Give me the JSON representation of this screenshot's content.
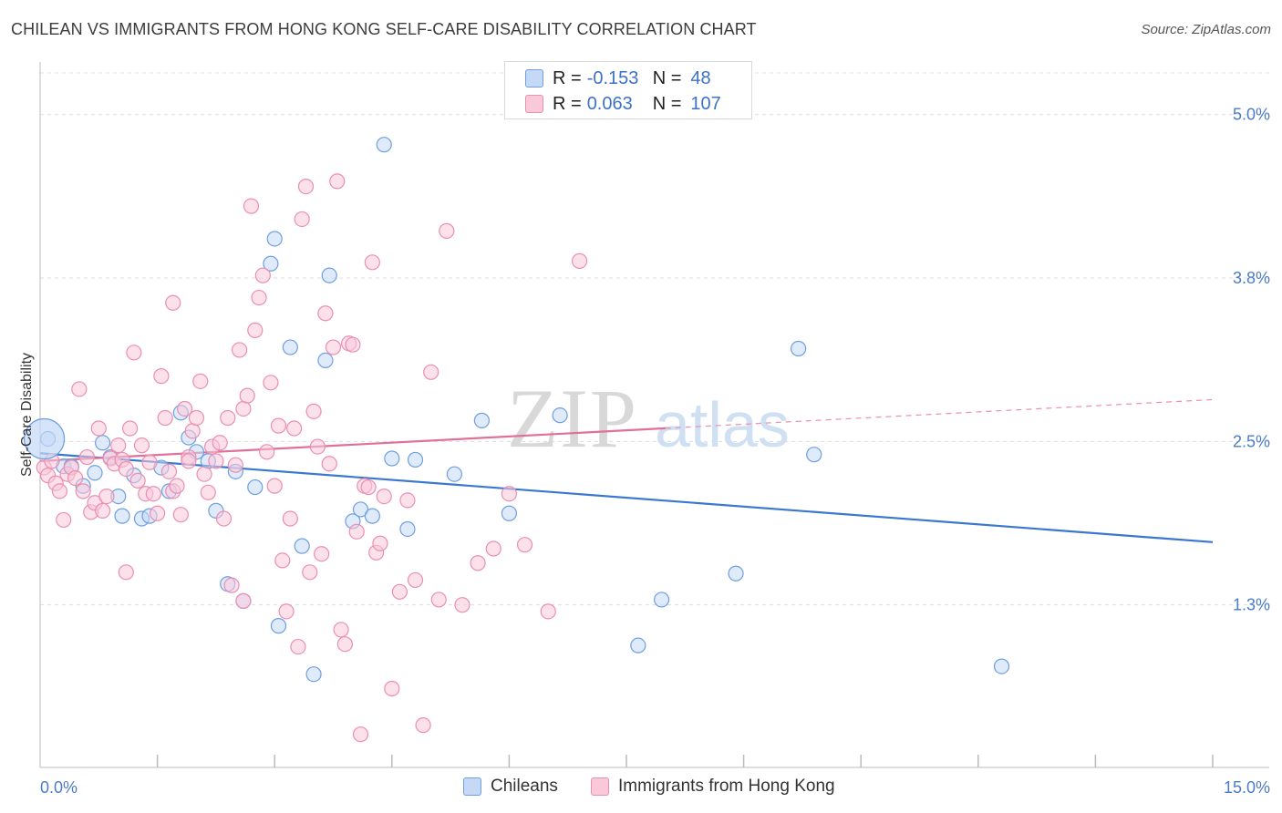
{
  "header": {
    "title": "CHILEAN VS IMMIGRANTS FROM HONG KONG SELF-CARE DISABILITY CORRELATION CHART",
    "source": "Source: ZipAtlas.com"
  },
  "watermark": {
    "zip": "ZIP",
    "atlas": "atlas"
  },
  "legend": {
    "rows": [
      {
        "r_label": "R =",
        "r_value": "-0.153",
        "n_label": "N =",
        "n_value": "48",
        "color": "#6f9fe0",
        "fill": "#c5d9f6"
      },
      {
        "r_label": "R =",
        "r_value": "0.063",
        "n_label": "N =",
        "n_value": "107",
        "color": "#ea8fb0",
        "fill": "#f9c9da"
      }
    ]
  },
  "bottom_legend": [
    {
      "label": "Chileans",
      "color": "#6f9fe0",
      "fill": "#c5d9f6"
    },
    {
      "label": "Immigrants from Hong Kong",
      "color": "#ea8fb0",
      "fill": "#f9c9da"
    }
  ],
  "chart_data": {
    "type": "scatter",
    "title": "CHILEAN VS IMMIGRANTS FROM HONG KONG SELF-CARE DISABILITY CORRELATION CHART",
    "xlabel": "",
    "ylabel": "Self-Care Disability",
    "xlim": [
      0,
      15
    ],
    "ylim": [
      0,
      5.2
    ],
    "x_tick_labels": [
      {
        "value": 0,
        "label": "0.0%"
      },
      {
        "value": 15,
        "label": "15.0%"
      }
    ],
    "y_tick_labels": [
      {
        "value": 1.25,
        "label": "1.3%"
      },
      {
        "value": 2.5,
        "label": "2.5%"
      },
      {
        "value": 3.75,
        "label": "3.8%"
      },
      {
        "value": 5.0,
        "label": "5.0%"
      }
    ],
    "y_gridlines": [
      1.25,
      2.5,
      3.75,
      5.0
    ],
    "x_minor_ticks": [
      1.5,
      3.0,
      4.5,
      6.0,
      7.5,
      9.0,
      10.5,
      12.0,
      13.5,
      15.0
    ],
    "series": [
      {
        "name": "Chileans",
        "color": "#6f9fe0",
        "fill": "#c5d9f6",
        "trend": {
          "x0": 0,
          "y0": 2.41,
          "x1": 15,
          "y1": 1.73,
          "dashed_from": null
        },
        "points": [
          [
            0.1,
            2.52
          ],
          [
            0.3,
            2.31
          ],
          [
            0.4,
            2.31
          ],
          [
            0.7,
            2.26
          ],
          [
            0.8,
            2.49
          ],
          [
            0.9,
            2.38
          ],
          [
            0.55,
            2.16
          ],
          [
            1.0,
            2.08
          ],
          [
            1.05,
            1.93
          ],
          [
            1.3,
            1.91
          ],
          [
            1.4,
            1.93
          ],
          [
            1.55,
            2.3
          ],
          [
            1.65,
            2.12
          ],
          [
            1.8,
            2.72
          ],
          [
            1.9,
            2.53
          ],
          [
            2.0,
            2.42
          ],
          [
            2.15,
            2.35
          ],
          [
            2.25,
            1.97
          ],
          [
            2.4,
            1.41
          ],
          [
            2.5,
            2.27
          ],
          [
            2.6,
            1.28
          ],
          [
            2.75,
            2.15
          ],
          [
            2.95,
            3.86
          ],
          [
            3.0,
            4.05
          ],
          [
            3.05,
            1.09
          ],
          [
            3.2,
            3.22
          ],
          [
            3.35,
            1.7
          ],
          [
            3.5,
            0.72
          ],
          [
            3.65,
            3.12
          ],
          [
            3.7,
            3.77
          ],
          [
            4.0,
            1.89
          ],
          [
            4.1,
            1.98
          ],
          [
            4.25,
            1.93
          ],
          [
            4.4,
            4.77
          ],
          [
            4.5,
            2.37
          ],
          [
            4.7,
            1.83
          ],
          [
            4.8,
            2.36
          ],
          [
            5.3,
            2.25
          ],
          [
            5.65,
            2.66
          ],
          [
            6.0,
            1.95
          ],
          [
            6.65,
            2.7
          ],
          [
            7.65,
            0.94
          ],
          [
            7.95,
            1.29
          ],
          [
            8.9,
            1.49
          ],
          [
            9.7,
            3.21
          ],
          [
            9.9,
            2.4
          ],
          [
            12.3,
            0.78
          ],
          [
            1.2,
            2.24
          ]
        ]
      },
      {
        "name": "Immigrants from Hong Kong",
        "color": "#ea8fb0",
        "fill": "#f9c9da",
        "trend": {
          "x0": 0,
          "y0": 2.35,
          "x1": 15,
          "y1": 2.82,
          "dashed_from": 8.0
        },
        "points": [
          [
            0.05,
            2.3
          ],
          [
            0.1,
            2.24
          ],
          [
            0.15,
            2.35
          ],
          [
            0.2,
            2.18
          ],
          [
            0.25,
            2.12
          ],
          [
            0.3,
            1.9
          ],
          [
            0.35,
            2.25
          ],
          [
            0.4,
            2.3
          ],
          [
            0.45,
            2.22
          ],
          [
            0.5,
            2.9
          ],
          [
            0.55,
            2.12
          ],
          [
            0.6,
            2.38
          ],
          [
            0.65,
            1.96
          ],
          [
            0.7,
            2.03
          ],
          [
            0.75,
            2.6
          ],
          [
            0.8,
            1.97
          ],
          [
            0.85,
            2.08
          ],
          [
            0.9,
            2.37
          ],
          [
            0.95,
            2.33
          ],
          [
            1.0,
            2.47
          ],
          [
            1.05,
            2.36
          ],
          [
            1.1,
            2.29
          ],
          [
            1.15,
            2.6
          ],
          [
            1.2,
            3.18
          ],
          [
            1.25,
            2.2
          ],
          [
            1.3,
            2.47
          ],
          [
            1.35,
            2.1
          ],
          [
            1.4,
            2.34
          ],
          [
            1.45,
            2.1
          ],
          [
            1.5,
            1.95
          ],
          [
            1.55,
            3.0
          ],
          [
            1.6,
            2.68
          ],
          [
            1.65,
            2.27
          ],
          [
            1.7,
            2.12
          ],
          [
            1.75,
            2.16
          ],
          [
            1.8,
            1.94
          ],
          [
            1.85,
            2.75
          ],
          [
            1.9,
            2.38
          ],
          [
            1.95,
            2.58
          ],
          [
            2.0,
            2.68
          ],
          [
            2.05,
            2.96
          ],
          [
            2.1,
            2.25
          ],
          [
            2.15,
            2.11
          ],
          [
            2.2,
            2.46
          ],
          [
            2.25,
            2.35
          ],
          [
            2.3,
            2.49
          ],
          [
            2.35,
            1.91
          ],
          [
            2.4,
            2.68
          ],
          [
            2.45,
            1.4
          ],
          [
            2.5,
            2.32
          ],
          [
            2.55,
            3.2
          ],
          [
            2.6,
            2.75
          ],
          [
            2.65,
            2.85
          ],
          [
            2.7,
            4.3
          ],
          [
            2.75,
            3.35
          ],
          [
            2.8,
            3.6
          ],
          [
            2.85,
            3.77
          ],
          [
            2.9,
            2.42
          ],
          [
            2.95,
            2.95
          ],
          [
            3.0,
            2.16
          ],
          [
            3.05,
            2.62
          ],
          [
            3.1,
            1.59
          ],
          [
            3.15,
            1.2
          ],
          [
            3.2,
            1.91
          ],
          [
            3.25,
            2.6
          ],
          [
            3.3,
            0.93
          ],
          [
            3.35,
            4.2
          ],
          [
            3.4,
            4.45
          ],
          [
            3.45,
            1.5
          ],
          [
            3.5,
            2.73
          ],
          [
            3.55,
            2.46
          ],
          [
            3.6,
            1.64
          ],
          [
            3.65,
            3.48
          ],
          [
            3.7,
            2.33
          ],
          [
            3.75,
            3.22
          ],
          [
            3.8,
            4.49
          ],
          [
            3.85,
            1.06
          ],
          [
            3.9,
            0.95
          ],
          [
            3.95,
            3.25
          ],
          [
            4.0,
            3.24
          ],
          [
            4.05,
            1.81
          ],
          [
            4.1,
            0.26
          ],
          [
            4.15,
            2.16
          ],
          [
            4.2,
            2.15
          ],
          [
            4.25,
            3.87
          ],
          [
            4.3,
            1.65
          ],
          [
            4.35,
            1.72
          ],
          [
            4.4,
            2.08
          ],
          [
            4.5,
            0.61
          ],
          [
            4.6,
            1.35
          ],
          [
            4.7,
            2.05
          ],
          [
            4.8,
            1.44
          ],
          [
            4.9,
            0.33
          ],
          [
            5.0,
            3.03
          ],
          [
            5.1,
            1.29
          ],
          [
            5.2,
            4.11
          ],
          [
            5.4,
            1.25
          ],
          [
            5.6,
            1.57
          ],
          [
            5.8,
            1.68
          ],
          [
            6.0,
            2.1
          ],
          [
            6.2,
            1.71
          ],
          [
            6.5,
            1.2
          ],
          [
            6.9,
            3.88
          ],
          [
            1.7,
            3.56
          ],
          [
            1.1,
            1.5
          ],
          [
            2.6,
            1.28
          ],
          [
            1.9,
            2.35
          ]
        ]
      }
    ]
  }
}
